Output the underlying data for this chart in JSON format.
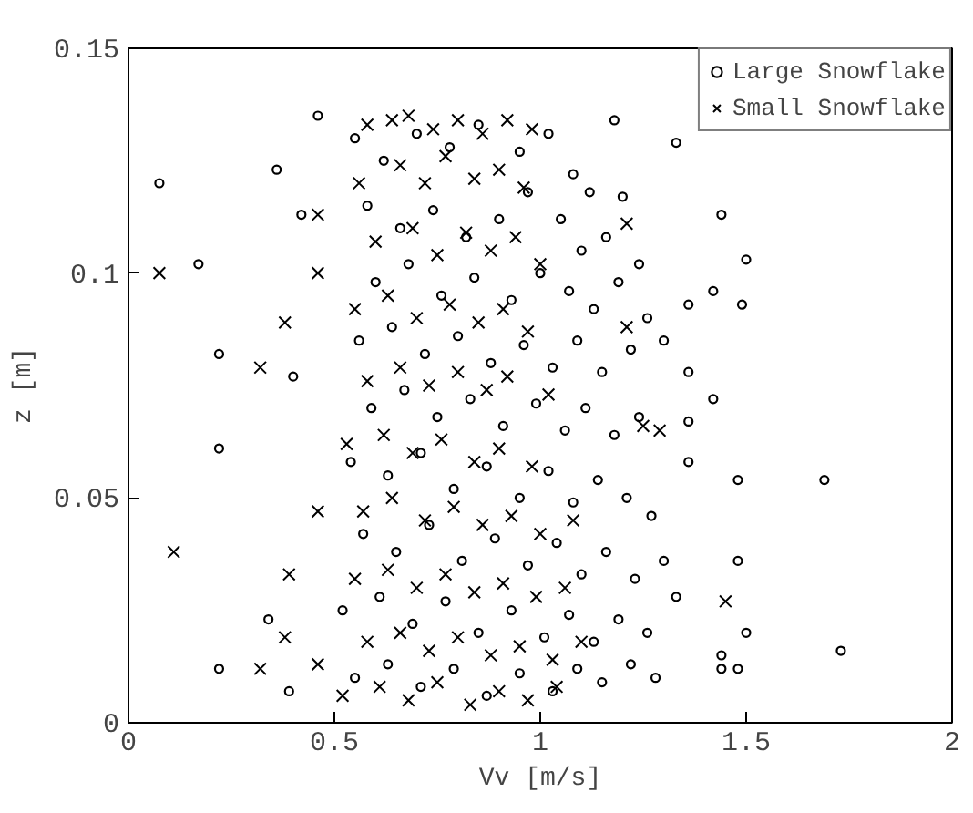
{
  "chart_data": {
    "type": "scatter",
    "xlabel": "Vv [m/s]",
    "ylabel": "z [m]",
    "xlim": [
      0,
      2
    ],
    "ylim": [
      0,
      0.15
    ],
    "xticks": [
      0,
      0.5,
      1,
      1.5,
      2
    ],
    "yticks": [
      0,
      0.05,
      0.1,
      0.15
    ],
    "grid": false,
    "legend": "top right",
    "series": [
      {
        "name": "Large Snowflake",
        "color": "#000000",
        "marker": "circle",
        "x": [
          0.075,
          0.17,
          0.22,
          0.22,
          0.22,
          0.34,
          0.39,
          0.4,
          0.36,
          0.42,
          0.46,
          1.18,
          1.33,
          1.44,
          1.5,
          1.42,
          1.49,
          1.36,
          1.3,
          1.36,
          1.42,
          1.36,
          1.36,
          1.48,
          1.69,
          1.48,
          1.5,
          1.73,
          1.44,
          1.48,
          1.44,
          0.55,
          0.62,
          0.7,
          0.78,
          0.85,
          0.95,
          1.02,
          1.08,
          1.12,
          1.2,
          0.58,
          0.66,
          0.74,
          0.82,
          0.9,
          0.97,
          1.05,
          1.1,
          1.16,
          1.24,
          0.6,
          0.68,
          0.76,
          0.84,
          0.93,
          1.0,
          1.07,
          1.13,
          1.19,
          1.26,
          0.56,
          0.64,
          0.72,
          0.8,
          0.88,
          0.96,
          1.03,
          1.09,
          1.15,
          1.22,
          0.59,
          0.67,
          0.75,
          0.83,
          0.91,
          0.99,
          1.06,
          1.11,
          1.18,
          1.24,
          0.54,
          0.63,
          0.71,
          0.79,
          0.87,
          0.95,
          1.02,
          1.08,
          1.14,
          1.21,
          1.27,
          0.57,
          0.65,
          0.73,
          0.81,
          0.89,
          0.97,
          1.04,
          1.1,
          1.16,
          1.23,
          1.3,
          0.52,
          0.61,
          0.69,
          0.77,
          0.85,
          0.93,
          1.01,
          1.07,
          1.13,
          1.19,
          1.26,
          1.33,
          0.55,
          0.63,
          0.71,
          0.79,
          0.87,
          0.95,
          1.03,
          1.09,
          1.15,
          1.22,
          1.28
        ],
        "values": [
          0.12,
          0.102,
          0.082,
          0.061,
          0.012,
          0.023,
          0.007,
          0.077,
          0.123,
          0.113,
          0.135,
          0.134,
          0.129,
          0.113,
          0.103,
          0.096,
          0.093,
          0.093,
          0.085,
          0.078,
          0.072,
          0.067,
          0.058,
          0.054,
          0.054,
          0.036,
          0.02,
          0.016,
          0.015,
          0.012,
          0.012,
          0.13,
          0.125,
          0.131,
          0.128,
          0.133,
          0.127,
          0.131,
          0.122,
          0.118,
          0.117,
          0.115,
          0.11,
          0.114,
          0.108,
          0.112,
          0.118,
          0.112,
          0.105,
          0.108,
          0.102,
          0.098,
          0.102,
          0.095,
          0.099,
          0.094,
          0.1,
          0.096,
          0.092,
          0.098,
          0.09,
          0.085,
          0.088,
          0.082,
          0.086,
          0.08,
          0.084,
          0.079,
          0.085,
          0.078,
          0.083,
          0.07,
          0.074,
          0.068,
          0.072,
          0.066,
          0.071,
          0.065,
          0.07,
          0.064,
          0.068,
          0.058,
          0.055,
          0.06,
          0.052,
          0.057,
          0.05,
          0.056,
          0.049,
          0.054,
          0.05,
          0.046,
          0.042,
          0.038,
          0.044,
          0.036,
          0.041,
          0.035,
          0.04,
          0.033,
          0.038,
          0.032,
          0.036,
          0.025,
          0.028,
          0.022,
          0.027,
          0.02,
          0.025,
          0.019,
          0.024,
          0.018,
          0.023,
          0.02,
          0.028,
          0.01,
          0.013,
          0.008,
          0.012,
          0.006,
          0.011,
          0.007,
          0.012,
          0.009,
          0.013,
          0.01
        ]
      },
      {
        "name": "Small Snowflake",
        "color": "#000000",
        "marker": "cross",
        "x": [
          0.075,
          0.11,
          0.32,
          0.38,
          0.39,
          0.38,
          0.32,
          0.46,
          0.46,
          0.46,
          0.46,
          1.45,
          1.21,
          1.25,
          1.29,
          1.21,
          0.58,
          0.64,
          0.68,
          0.74,
          0.8,
          0.86,
          0.92,
          0.98,
          0.56,
          0.66,
          0.72,
          0.77,
          0.84,
          0.9,
          0.96,
          0.6,
          0.69,
          0.75,
          0.82,
          0.88,
          0.94,
          1.0,
          0.55,
          0.63,
          0.7,
          0.78,
          0.85,
          0.91,
          0.97,
          0.58,
          0.66,
          0.73,
          0.8,
          0.87,
          0.92,
          1.02,
          0.53,
          0.62,
          0.69,
          0.76,
          0.84,
          0.9,
          0.98,
          0.57,
          0.64,
          0.72,
          0.79,
          0.86,
          0.93,
          1.0,
          1.08,
          0.55,
          0.63,
          0.7,
          0.77,
          0.84,
          0.91,
          0.99,
          1.06,
          0.58,
          0.66,
          0.73,
          0.8,
          0.88,
          0.95,
          1.03,
          1.1,
          0.52,
          0.61,
          0.68,
          0.75,
          0.83,
          0.9,
          0.97,
          1.04
        ],
        "values": [
          0.1,
          0.038,
          0.079,
          0.089,
          0.033,
          0.019,
          0.012,
          0.113,
          0.1,
          0.047,
          0.013,
          0.027,
          0.111,
          0.066,
          0.065,
          0.088,
          0.133,
          0.134,
          0.135,
          0.132,
          0.134,
          0.131,
          0.134,
          0.132,
          0.12,
          0.124,
          0.12,
          0.126,
          0.121,
          0.123,
          0.119,
          0.107,
          0.11,
          0.104,
          0.109,
          0.105,
          0.108,
          0.102,
          0.092,
          0.095,
          0.09,
          0.093,
          0.089,
          0.092,
          0.087,
          0.076,
          0.079,
          0.075,
          0.078,
          0.074,
          0.077,
          0.073,
          0.062,
          0.064,
          0.06,
          0.063,
          0.058,
          0.061,
          0.057,
          0.047,
          0.05,
          0.045,
          0.048,
          0.044,
          0.046,
          0.042,
          0.045,
          0.032,
          0.034,
          0.03,
          0.033,
          0.029,
          0.031,
          0.028,
          0.03,
          0.018,
          0.02,
          0.016,
          0.019,
          0.015,
          0.017,
          0.014,
          0.018,
          0.006,
          0.008,
          0.005,
          0.009,
          0.004,
          0.007,
          0.005,
          0.008
        ]
      }
    ]
  }
}
